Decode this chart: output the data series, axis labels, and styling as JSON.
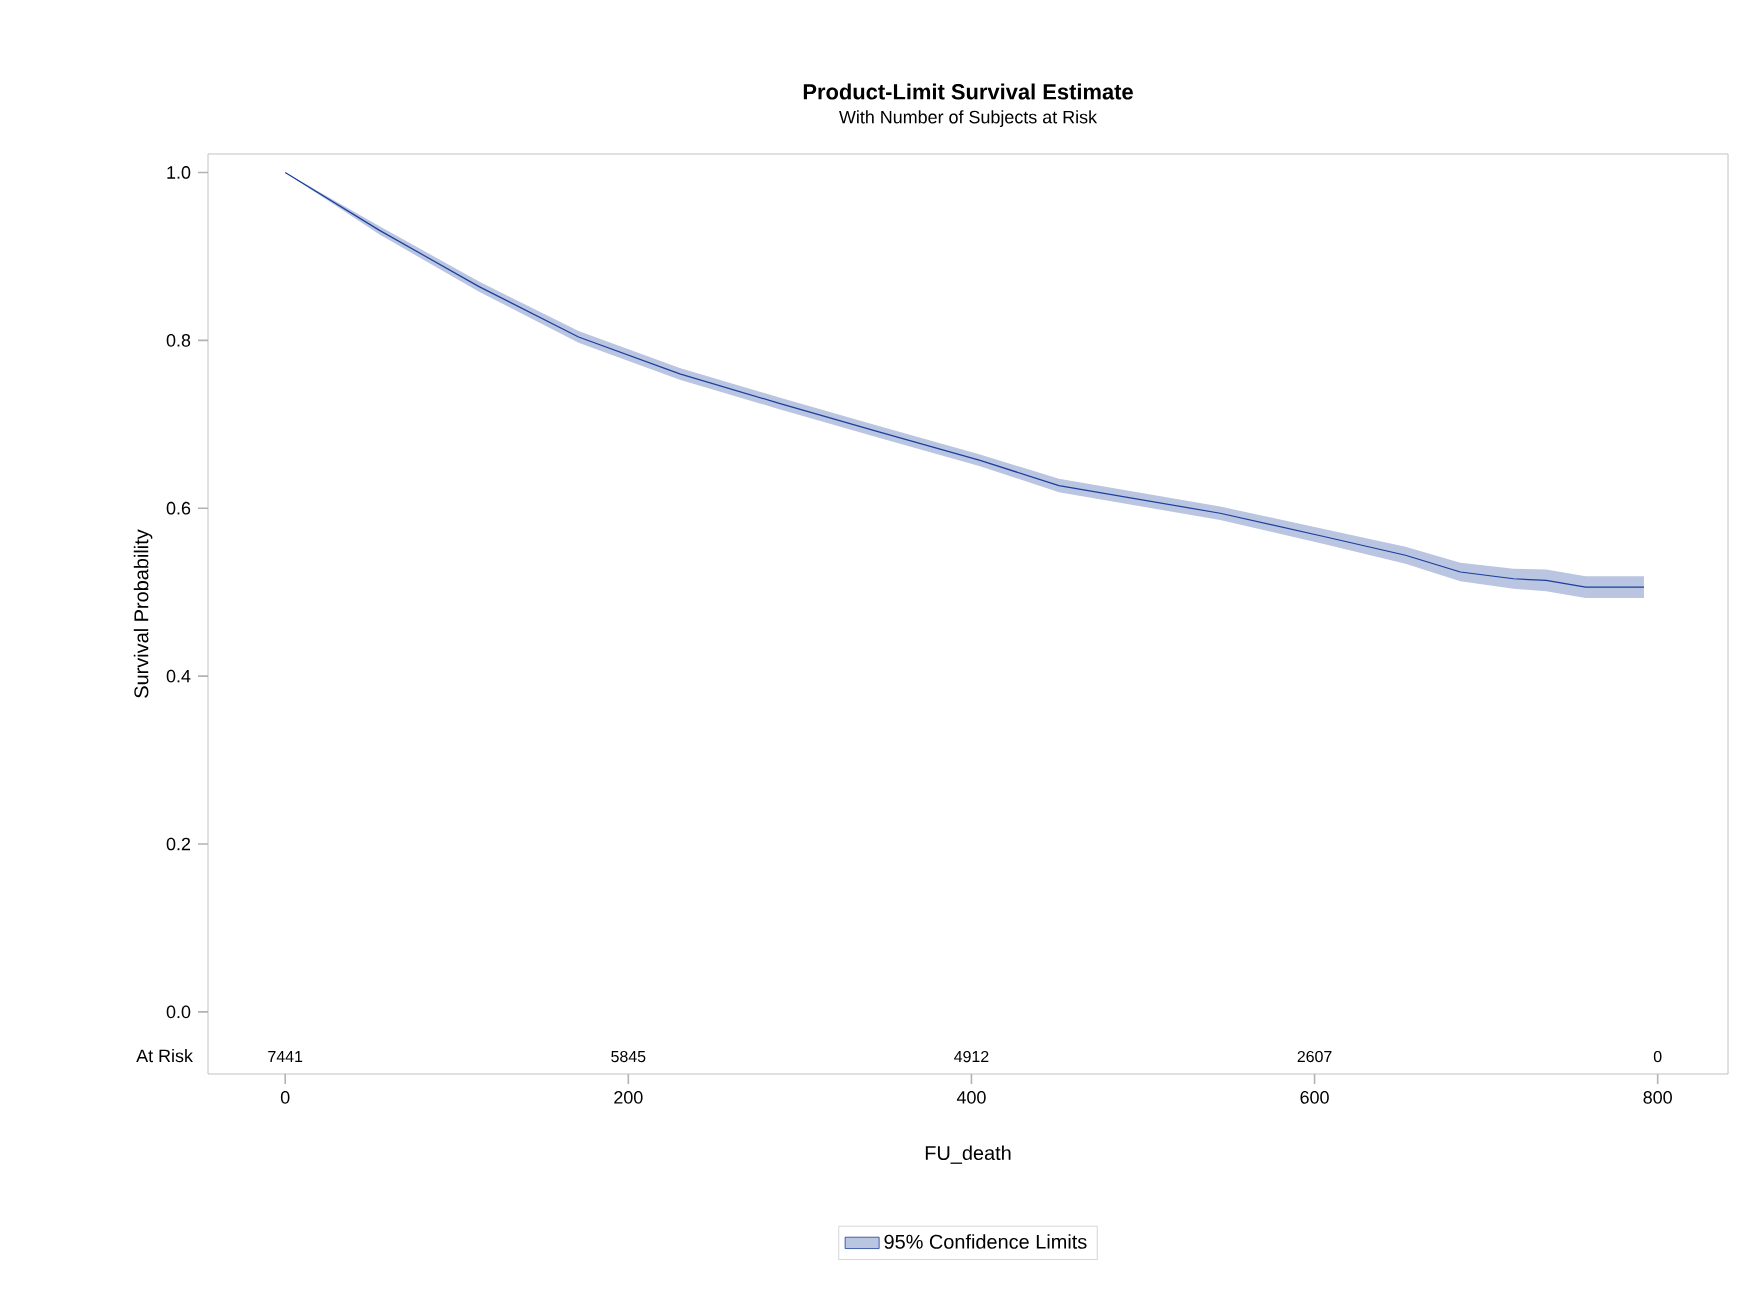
{
  "chart_data": {
    "type": "line",
    "title": "Product-Limit Survival Estimate",
    "subtitle": "With Number of Subjects at Risk",
    "xlabel": "FU_death",
    "ylabel": "Survival Probability",
    "x": [
      0,
      55,
      113,
      171,
      230,
      288,
      346,
      405,
      451,
      545,
      606,
      653,
      685,
      716,
      735,
      758,
      792
    ],
    "series": [
      {
        "name": "95% Confidence Limits",
        "color": "#1a3e9c",
        "values": [
          1.0,
          0.931,
          0.864,
          0.804,
          0.76,
          0.725,
          0.691,
          0.657,
          0.627,
          0.594,
          0.566,
          0.544,
          0.524,
          0.516,
          0.514,
          0.506,
          0.506
        ],
        "lower": [
          1.0,
          0.926,
          0.858,
          0.797,
          0.753,
          0.718,
          0.684,
          0.65,
          0.619,
          0.586,
          0.557,
          0.534,
          0.513,
          0.504,
          0.501,
          0.493,
          0.493
        ],
        "upper": [
          1.0,
          0.936,
          0.87,
          0.811,
          0.767,
          0.732,
          0.698,
          0.664,
          0.635,
          0.602,
          0.575,
          0.554,
          0.535,
          0.528,
          0.527,
          0.519,
          0.519
        ]
      }
    ],
    "xlim": [
      -45,
      841
    ],
    "ylim": [
      -0.074,
      1.022
    ],
    "xticks": [
      0,
      200,
      400,
      600,
      800
    ],
    "yticks": [
      {
        "value": 0,
        "label": "0.0"
      },
      {
        "value": 0.2,
        "label": "0.2"
      },
      {
        "value": 0.4,
        "label": "0.4"
      },
      {
        "value": 0.6,
        "label": "0.6"
      },
      {
        "value": 0.8,
        "label": "0.8"
      },
      {
        "value": 1.0,
        "label": "1.0"
      }
    ],
    "annotations": [
      "At Risk",
      "7441",
      "5845",
      "4912",
      "2607",
      "0"
    ],
    "grid": false,
    "legend": "bottom",
    "marker": "none",
    "line_style": "solid"
  }
}
